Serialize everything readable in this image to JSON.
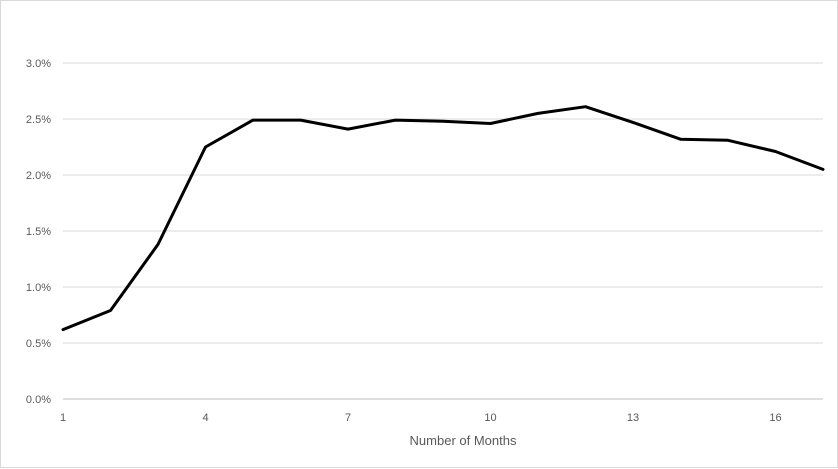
{
  "chart_data": {
    "type": "line",
    "xlabel": "Number of Months",
    "ylabel": "",
    "xlim": [
      1,
      17
    ],
    "ylim": [
      0,
      3.0
    ],
    "x_ticks": [
      1,
      4,
      7,
      10,
      13,
      16
    ],
    "y_ticks": [
      0.0,
      0.5,
      1.0,
      1.5,
      2.0,
      2.5,
      3.0
    ],
    "y_tick_labels": [
      "0.0%",
      "0.5%",
      "1.0%",
      "1.5%",
      "2.0%",
      "2.5%",
      "3.0%"
    ],
    "x": [
      1,
      2,
      3,
      4,
      5,
      6,
      7,
      8,
      9,
      10,
      11,
      12,
      13,
      14,
      15,
      16,
      17
    ],
    "series": [
      {
        "values": [
          0.62,
          0.79,
          1.38,
          2.25,
          2.49,
          2.49,
          2.41,
          2.49,
          2.48,
          2.46,
          2.55,
          2.61,
          2.47,
          2.32,
          2.31,
          2.21,
          2.05
        ],
        "color": "#000000"
      }
    ],
    "grid": true,
    "legend": "none"
  }
}
